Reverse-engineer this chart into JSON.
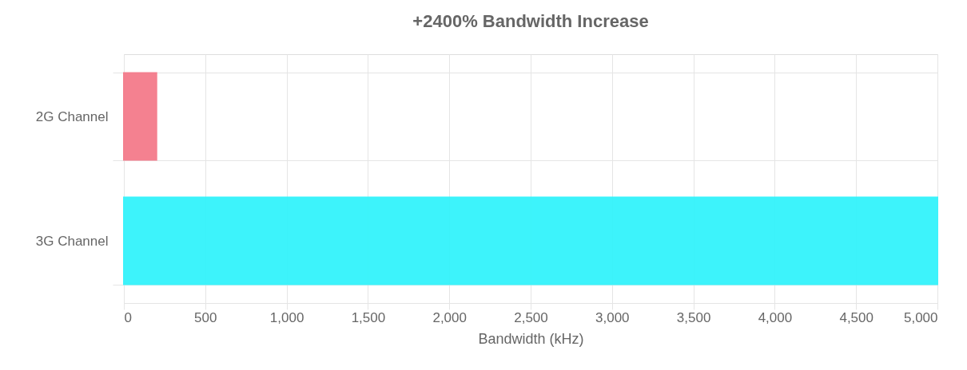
{
  "chart_data": {
    "type": "bar",
    "title": "+2400% Bandwidth Increase",
    "xlabel": "Bandwidth (kHz)",
    "orientation": "horizontal",
    "categories": [
      "2G Channel",
      "3G Channel"
    ],
    "values": [
      200,
      5000
    ],
    "colors": [
      "#f47b8b",
      "#33f3fb"
    ],
    "xlim": [
      0,
      5000
    ],
    "xticks": [
      0,
      500,
      {
        "value": 1000,
        "label": "1,000"
      },
      {
        "value": 1500,
        "label": "1,500"
      },
      {
        "value": 2000,
        "label": "2,000"
      },
      {
        "value": 2500,
        "label": "2,500"
      },
      {
        "value": 3000,
        "label": "3,000"
      },
      {
        "value": 3500,
        "label": "3,500"
      },
      {
        "value": 4000,
        "label": "4,000"
      },
      {
        "value": 4500,
        "label": "4,500"
      },
      {
        "value": 5000,
        "label": "5,000"
      }
    ],
    "grid": true
  }
}
